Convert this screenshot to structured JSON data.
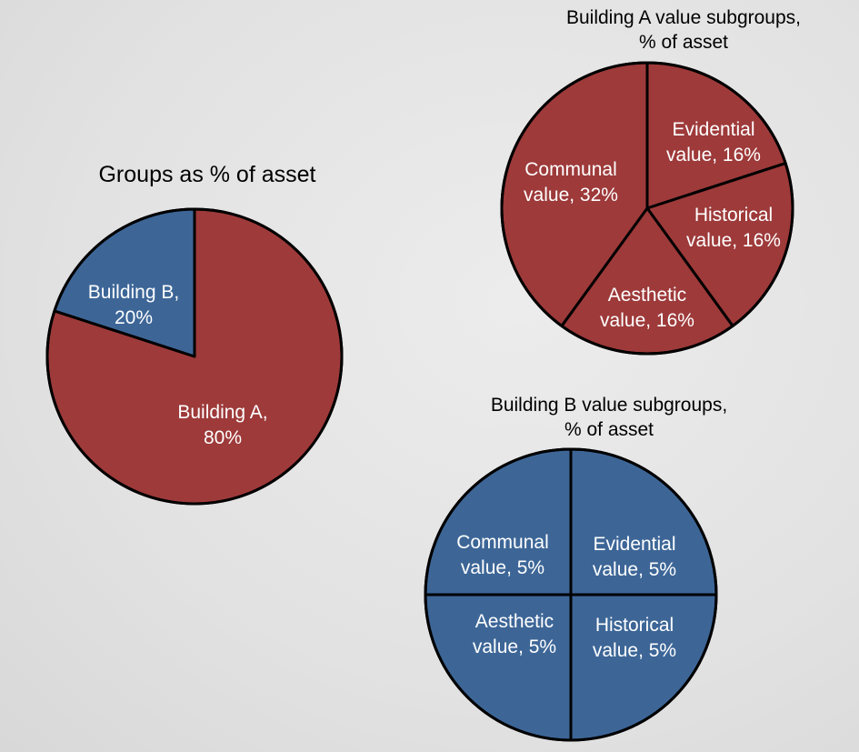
{
  "chart_data": [
    {
      "type": "pie",
      "title": "Groups as % of asset",
      "slices": [
        {
          "label": [
            "Building A,",
            "80%"
          ],
          "value": 80,
          "color": "#9e3a3a"
        },
        {
          "label": [
            "Building B,",
            "20%"
          ],
          "value": 20,
          "color": "#3d6697"
        }
      ]
    },
    {
      "type": "pie",
      "title": "Building A value subgroups, % of asset",
      "slices": [
        {
          "label": [
            "Evidential",
            "value, 16%"
          ],
          "value": 16,
          "color": "#9e3a3a"
        },
        {
          "label": [
            "Historical",
            "value, 16%"
          ],
          "value": 16,
          "color": "#9e3a3a"
        },
        {
          "label": [
            "Aesthetic",
            "value, 16%"
          ],
          "value": 16,
          "color": "#9e3a3a"
        },
        {
          "label": [
            "Communal",
            "value, 32%"
          ],
          "value": 32,
          "color": "#9e3a3a"
        }
      ]
    },
    {
      "type": "pie",
      "title": "Building B value subgroups, % of asset",
      "slices": [
        {
          "label": [
            "Evidential",
            "value, 5%"
          ],
          "value": 5,
          "color": "#3d6697"
        },
        {
          "label": [
            "Historical",
            "value, 5%"
          ],
          "value": 5,
          "color": "#3d6697"
        },
        {
          "label": [
            "Aesthetic",
            "value, 5%"
          ],
          "value": 5,
          "color": "#3d6697"
        },
        {
          "label": [
            "Communal",
            "value, 5%"
          ],
          "value": 5,
          "color": "#3d6697"
        }
      ]
    }
  ]
}
